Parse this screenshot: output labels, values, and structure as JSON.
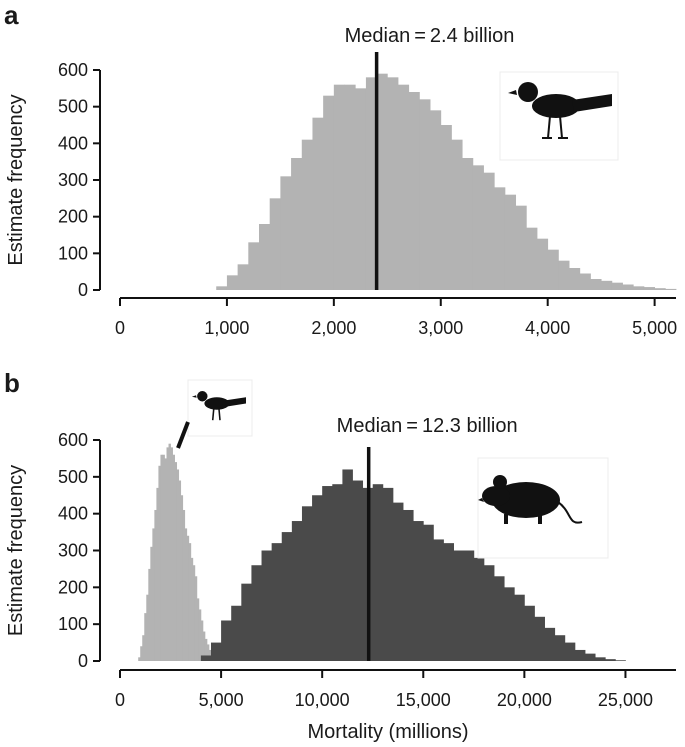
{
  "chart_data": [
    {
      "type": "bar",
      "panel": "a",
      "ylabel": "Estimate frequency",
      "xlabel": "",
      "xlim": [
        0,
        5200
      ],
      "ylim": [
        0,
        600
      ],
      "xticks": [
        "0",
        "1,000",
        "2,000",
        "3,000",
        "4,000",
        "5,000"
      ],
      "yticks": [
        "0",
        "100",
        "200",
        "300",
        "400",
        "500",
        "600"
      ],
      "median": {
        "value": 2400,
        "label": "Median = 2.4 billion"
      },
      "icon": "bird-icon",
      "series": [
        {
          "color": "#b3b3b3",
          "bin_start": 900,
          "bin_width": 100,
          "values": [
            10,
            40,
            70,
            130,
            180,
            250,
            310,
            360,
            410,
            470,
            530,
            560,
            560,
            550,
            580,
            590,
            580,
            560,
            540,
            520,
            490,
            450,
            410,
            360,
            340,
            320,
            280,
            260,
            230,
            170,
            140,
            110,
            80,
            60,
            45,
            30,
            25,
            20,
            15,
            10,
            8,
            5,
            3
          ]
        }
      ]
    },
    {
      "type": "bar",
      "panel": "b",
      "ylabel": "Estimate frequency",
      "xlabel": "Mortality (millions)",
      "xlim": [
        0,
        27500
      ],
      "ylim": [
        0,
        600
      ],
      "xticks": [
        "0",
        "5,000",
        "10,000",
        "15,000",
        "20,000",
        "25,000"
      ],
      "yticks": [
        "0",
        "100",
        "200",
        "300",
        "400",
        "500",
        "600"
      ],
      "median": {
        "value": 12300,
        "label": "Median = 12.3 billion"
      },
      "icons": [
        "bird-icon",
        "mouse-icon"
      ],
      "series": [
        {
          "color": "#b3b3b3",
          "bin_start": 900,
          "bin_width": 100,
          "values": [
            10,
            40,
            70,
            130,
            180,
            250,
            310,
            360,
            410,
            470,
            530,
            560,
            560,
            550,
            580,
            590,
            580,
            560,
            540,
            520,
            490,
            450,
            410,
            360,
            340,
            320,
            280,
            260,
            230,
            170,
            140,
            110,
            80,
            60,
            45,
            30,
            25,
            20,
            15,
            10,
            8,
            5,
            3
          ]
        },
        {
          "color": "#4a4a4a",
          "bin_start": 4000,
          "bin_width": 500,
          "values": [
            15,
            50,
            110,
            150,
            210,
            260,
            300,
            320,
            350,
            380,
            420,
            450,
            475,
            480,
            520,
            490,
            470,
            480,
            470,
            430,
            410,
            380,
            370,
            330,
            320,
            300,
            300,
            280,
            260,
            230,
            200,
            180,
            150,
            120,
            90,
            70,
            50,
            30,
            20,
            10,
            5,
            2
          ]
        }
      ]
    }
  ]
}
